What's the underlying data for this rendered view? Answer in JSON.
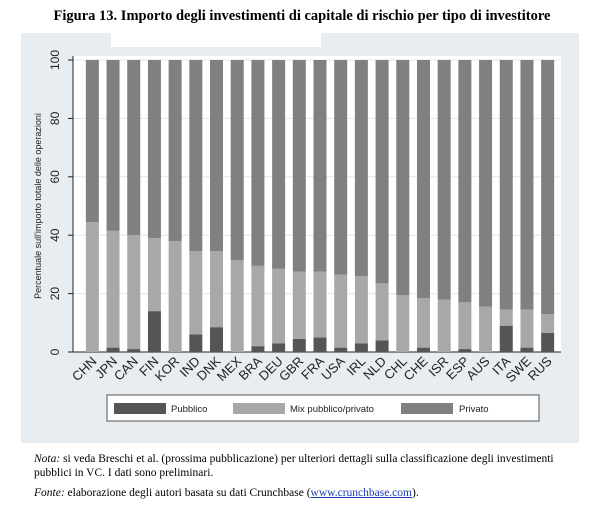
{
  "figure": {
    "title": "Figura 13. Importo degli investimenti di capitale di rischio per tipo di investitore"
  },
  "chart_data": {
    "type": "bar",
    "stacked": true,
    "ylabel": "Percentuale sull'importo totale delle operazioni",
    "xlabel": "",
    "ylim": [
      0,
      100
    ],
    "yticks": [
      0,
      20,
      40,
      60,
      80,
      100
    ],
    "categories": [
      "CHN",
      "JPN",
      "CAN",
      "FIN",
      "KOR",
      "IND",
      "DNK",
      "MEX",
      "BRA",
      "DEU",
      "GBR",
      "FRA",
      "USA",
      "IRL",
      "NLD",
      "CHL",
      "CHE",
      "ISR",
      "ESP",
      "AUS",
      "ITA",
      "SWE",
      "RUS"
    ],
    "series": [
      {
        "name": "Pubblico",
        "color": "#555555",
        "values": [
          0,
          1.5,
          1,
          14,
          0,
          6,
          8.5,
          0,
          2,
          3,
          4.5,
          5,
          1.5,
          3,
          4,
          0,
          1.5,
          0,
          1,
          0,
          9,
          1.5,
          6.5
        ]
      },
      {
        "name": "Mix pubblico/privato",
        "color": "#a8a8a8",
        "values": [
          44.5,
          40,
          39,
          25,
          38,
          28.5,
          26,
          31.5,
          27.5,
          25.5,
          23,
          22.5,
          25,
          23,
          19.5,
          19.5,
          17,
          18,
          16,
          15.5,
          5.5,
          13,
          6.5
        ]
      },
      {
        "name": "Privato",
        "color": "#808080",
        "values": [
          55.5,
          58.5,
          60,
          61,
          62,
          65.5,
          65.5,
          68.5,
          70.5,
          71.5,
          72.5,
          72.5,
          73.5,
          74,
          76.5,
          80.5,
          81.5,
          82,
          83,
          84.5,
          85.5,
          85.5,
          87
        ]
      }
    ],
    "grid": true,
    "legend_position": "bottom"
  },
  "notes": {
    "nota_label": "Nota:",
    "nota_text": " si veda Breschi et al. (prossima pubblicazione) per ulteriori dettagli sulla classificazione degli investimenti pubblici in VC. I dati sono preliminari.",
    "fonte_label": "Fonte:",
    "fonte_text_before": " elaborazione degli autori basata su dati Crunchbase (",
    "fonte_link": "www.crunchbase.com",
    "fonte_text_after": ")."
  }
}
